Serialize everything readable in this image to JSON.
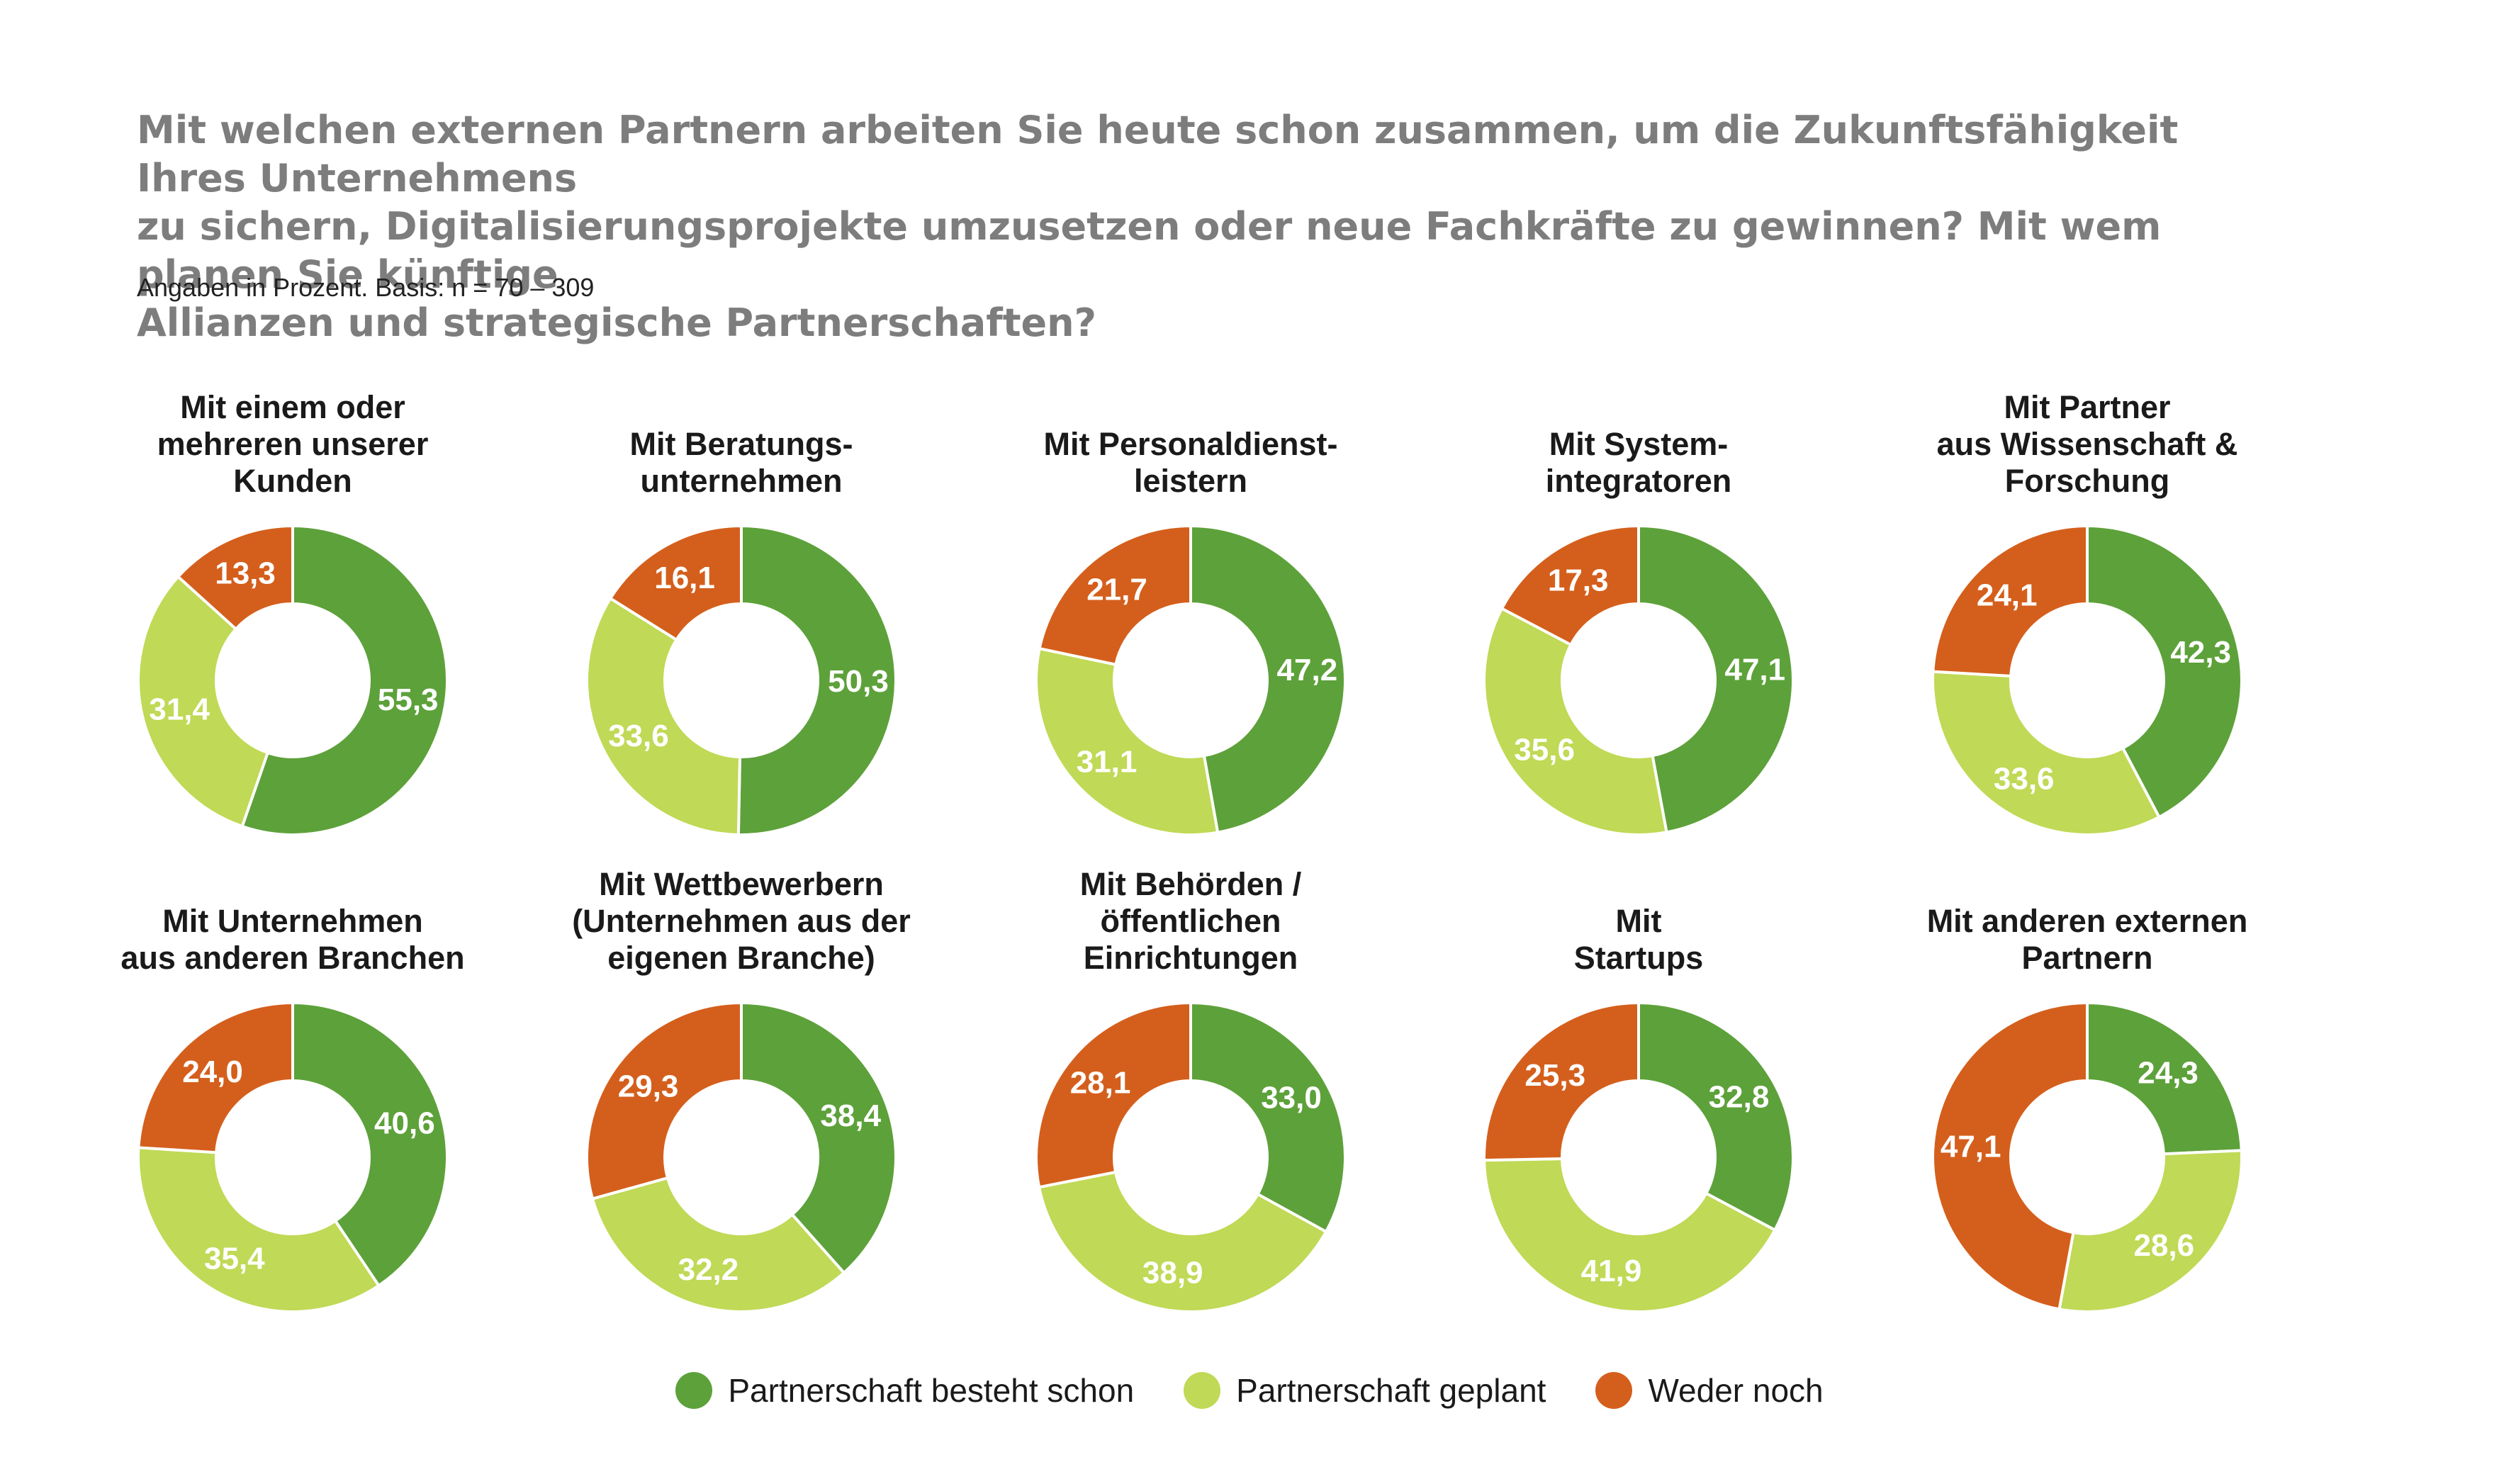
{
  "title": "Mit welchen externen Partnern arbeiten Sie heute schon zusammen, um die Zukunftsfähigkeit Ihres Unternehmens\nzu sichern, Digitalisierungsprojekte umzusetzen oder neue Fachkräfte zu gewinnen? Mit wem planen Sie künftige\nAllianzen und strategische Partnerschaften?",
  "subtitle": "Angaben in Prozent. Basis: n = 70 – 309",
  "colors": {
    "besteht": "#5da13a",
    "geplant": "#c0d956",
    "weder": "#d45f1c"
  },
  "legend": [
    {
      "key": "besteht",
      "label": "Partnerschaft besteht schon"
    },
    {
      "key": "geplant",
      "label": "Partnerschaft geplant"
    },
    {
      "key": "weder",
      "label": "Weder noch"
    }
  ],
  "chart_data": [
    {
      "type": "pie",
      "title": "Mit einem oder\nmehreren unserer\nKunden",
      "categories": [
        "Partnerschaft besteht schon",
        "Partnerschaft geplant",
        "Weder noch"
      ],
      "values": [
        55.3,
        31.4,
        13.3
      ],
      "labels": [
        "55,3",
        "31,4",
        "13,3"
      ]
    },
    {
      "type": "pie",
      "title": "Mit Beratungs-\nunternehmen",
      "categories": [
        "Partnerschaft besteht schon",
        "Partnerschaft geplant",
        "Weder noch"
      ],
      "values": [
        50.3,
        33.6,
        16.1
      ],
      "labels": [
        "50,3",
        "33,6",
        "16,1"
      ]
    },
    {
      "type": "pie",
      "title": "Mit Personaldienst-\nleistern",
      "categories": [
        "Partnerschaft besteht schon",
        "Partnerschaft geplant",
        "Weder noch"
      ],
      "values": [
        47.2,
        31.1,
        21.7
      ],
      "labels": [
        "47,2",
        "31,1",
        "21,7"
      ]
    },
    {
      "type": "pie",
      "title": "Mit System-\nintegratoren",
      "categories": [
        "Partnerschaft besteht schon",
        "Partnerschaft geplant",
        "Weder noch"
      ],
      "values": [
        47.1,
        35.6,
        17.3
      ],
      "labels": [
        "47,1",
        "35,6",
        "17,3"
      ]
    },
    {
      "type": "pie",
      "title": "Mit Partner\naus Wissenschaft &\nForschung",
      "categories": [
        "Partnerschaft besteht schon",
        "Partnerschaft geplant",
        "Weder noch"
      ],
      "values": [
        42.3,
        33.6,
        24.1
      ],
      "labels": [
        "42,3",
        "33,6",
        "24,1"
      ]
    },
    {
      "type": "pie",
      "title": "Mit Unternehmen\naus anderen Branchen",
      "categories": [
        "Partnerschaft besteht schon",
        "Partnerschaft geplant",
        "Weder noch"
      ],
      "values": [
        40.6,
        35.4,
        24.0
      ],
      "labels": [
        "40,6",
        "35,4",
        "24,0"
      ]
    },
    {
      "type": "pie",
      "title": "Mit Wettbewerbern\n(Unternehmen aus der\neigenen Branche)",
      "categories": [
        "Partnerschaft besteht schon",
        "Partnerschaft geplant",
        "Weder noch"
      ],
      "values": [
        38.4,
        32.2,
        29.3
      ],
      "labels": [
        "38,4",
        "32,2",
        "29,3"
      ]
    },
    {
      "type": "pie",
      "title": "Mit Behörden /\nöffentlichen\nEinrichtungen",
      "categories": [
        "Partnerschaft besteht schon",
        "Partnerschaft geplant",
        "Weder noch"
      ],
      "values": [
        33.0,
        38.9,
        28.1
      ],
      "labels": [
        "33,0",
        "38,9",
        "28,1"
      ]
    },
    {
      "type": "pie",
      "title": "Mit\nStartups",
      "categories": [
        "Partnerschaft besteht schon",
        "Partnerschaft geplant",
        "Weder noch"
      ],
      "values": [
        32.8,
        41.9,
        25.3
      ],
      "labels": [
        "32,8",
        "41,9",
        "25,3"
      ]
    },
    {
      "type": "pie",
      "title": "Mit anderen externen\nPartnern",
      "categories": [
        "Partnerschaft besteht schon",
        "Partnerschaft geplant",
        "Weder noch"
      ],
      "values": [
        24.3,
        28.6,
        47.1
      ],
      "labels": [
        "24,3",
        "28,6",
        "47,1"
      ]
    }
  ]
}
